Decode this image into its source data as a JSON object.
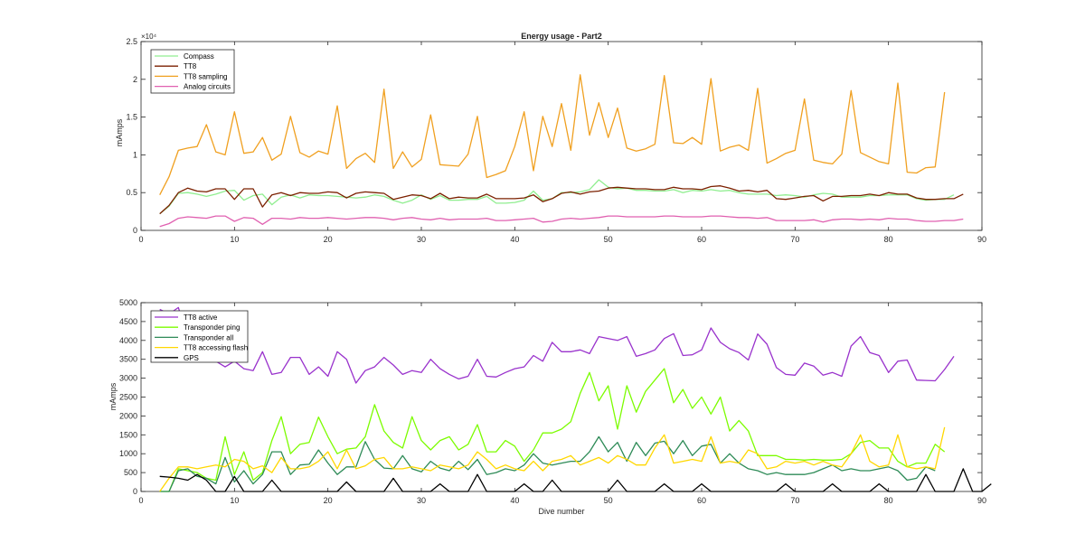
{
  "chart_data": [
    {
      "type": "line",
      "title": "Energy usage - Part2",
      "xlabel": "",
      "ylabel": "mAmps",
      "xlim": [
        0,
        90
      ],
      "ylim": [
        0,
        25000
      ],
      "x_ticks": [
        0,
        10,
        20,
        30,
        40,
        50,
        60,
        70,
        80,
        90
      ],
      "y_ticks": [
        0,
        5000,
        10000,
        15000,
        20000,
        25000
      ],
      "x_tick_labels": [
        "0",
        "10",
        "20",
        "30",
        "40",
        "50",
        "60",
        "70",
        "80",
        "90"
      ],
      "y_tick_labels": [
        "0",
        "0.5",
        "1",
        "1.5",
        "2",
        "2.5"
      ],
      "y_exponent_label": "×10⁴",
      "legend_position": "top-left",
      "grid": false,
      "x_start": 2,
      "series": [
        {
          "name": "Compass",
          "color": "#90ee90",
          "values": [
            2200,
            3200,
            4900,
            5000,
            4800,
            4500,
            4800,
            5200,
            5300,
            4000,
            4600,
            4800,
            3400,
            4400,
            4700,
            4300,
            4700,
            4600,
            4600,
            4500,
            4400,
            4300,
            4400,
            4700,
            4500,
            4000,
            3600,
            4000,
            4700,
            4100,
            4600,
            4000,
            4000,
            4100,
            4100,
            4500,
            3600,
            3600,
            3700,
            4000,
            5200,
            4000,
            4200,
            5000,
            5000,
            5100,
            5400,
            6700,
            5700,
            5500,
            5600,
            5300,
            5300,
            5200,
            5200,
            5400,
            5000,
            5300,
            5200,
            5400,
            5200,
            5300,
            5000,
            4800,
            4800,
            4800,
            4600,
            4700,
            4600,
            4400,
            4700,
            4900,
            4800,
            4400,
            4400,
            4400,
            4600,
            4600,
            4700,
            4700,
            4700,
            4200,
            4000,
            4100,
            4100,
            4700
          ]
        },
        {
          "name": "TT8",
          "color": "#7b2000",
          "values": [
            2200,
            3300,
            5000,
            5600,
            5200,
            5100,
            5500,
            5500,
            4100,
            5500,
            5500,
            3100,
            4700,
            5000,
            4600,
            5000,
            4900,
            4900,
            5100,
            5000,
            4300,
            4900,
            5100,
            5000,
            4900,
            4100,
            4400,
            4700,
            4600,
            4200,
            4900,
            4200,
            4400,
            4300,
            4300,
            4800,
            4200,
            4200,
            4200,
            4300,
            4700,
            3800,
            4200,
            4900,
            5100,
            4800,
            5100,
            5200,
            5600,
            5700,
            5600,
            5500,
            5500,
            5400,
            5400,
            5700,
            5500,
            5500,
            5400,
            5800,
            5900,
            5600,
            5200,
            5300,
            5100,
            5300,
            4200,
            4100,
            4300,
            4500,
            4600,
            3900,
            4500,
            4500,
            4600,
            4600,
            4800,
            4600,
            5000,
            4800,
            4800,
            4300,
            4100,
            4100,
            4200,
            4200,
            4800
          ]
        },
        {
          "name": "TT8 sampling",
          "color": "#f0a020",
          "values": [
            4700,
            7100,
            10600,
            10900,
            11100,
            14000,
            10400,
            10000,
            15700,
            10200,
            10400,
            12300,
            9300,
            10100,
            15100,
            10300,
            9700,
            10500,
            10100,
            16500,
            8200,
            9500,
            10200,
            9000,
            18700,
            8200,
            10400,
            8400,
            9400,
            15300,
            8700,
            8600,
            8500,
            10100,
            15100,
            7000,
            7400,
            7900,
            11100,
            15700,
            7900,
            15100,
            11100,
            16800,
            10600,
            20600,
            12600,
            16900,
            12300,
            16200,
            10900,
            10500,
            10800,
            11400,
            20500,
            11600,
            11500,
            12300,
            11400,
            20100,
            10500,
            11000,
            11300,
            10600,
            18800,
            8900,
            9500,
            10200,
            10600,
            17400,
            9300,
            9000,
            8800,
            10100,
            18500,
            10300,
            9700,
            9100,
            8800,
            19500,
            7700,
            7600,
            8300,
            8400,
            18300
          ]
        },
        {
          "name": "Analog circuits",
          "color": "#e060b0",
          "values": [
            500,
            900,
            1600,
            1800,
            1700,
            1600,
            1900,
            1900,
            1200,
            1700,
            1600,
            800,
            1600,
            1600,
            1500,
            1700,
            1600,
            1600,
            1700,
            1600,
            1500,
            1600,
            1700,
            1700,
            1600,
            1400,
            1600,
            1700,
            1500,
            1400,
            1600,
            1400,
            1500,
            1500,
            1500,
            1600,
            1300,
            1300,
            1400,
            1500,
            1600,
            1100,
            1200,
            1500,
            1600,
            1500,
            1600,
            1700,
            1900,
            1900,
            1800,
            1800,
            1800,
            1800,
            1900,
            1900,
            1800,
            1800,
            1800,
            1900,
            1900,
            1800,
            1700,
            1700,
            1600,
            1700,
            1300,
            1300,
            1300,
            1300,
            1400,
            1100,
            1400,
            1500,
            1500,
            1400,
            1500,
            1400,
            1600,
            1500,
            1500,
            1300,
            1200,
            1200,
            1300,
            1300,
            1500
          ]
        }
      ]
    },
    {
      "type": "line",
      "title": "",
      "xlabel": "Dive number",
      "ylabel": "mAmps",
      "xlim": [
        0,
        90
      ],
      "ylim": [
        0,
        5000
      ],
      "x_ticks": [
        0,
        10,
        20,
        30,
        40,
        50,
        60,
        70,
        80,
        90
      ],
      "y_ticks": [
        0,
        500,
        1000,
        1500,
        2000,
        2500,
        3000,
        3500,
        4000,
        4500,
        5000
      ],
      "x_tick_labels": [
        "0",
        "10",
        "20",
        "30",
        "40",
        "50",
        "60",
        "70",
        "80",
        "90"
      ],
      "y_tick_labels": [
        "0",
        "500",
        "1000",
        "1500",
        "2000",
        "2500",
        "3000",
        "3500",
        "4000",
        "4500",
        "5000"
      ],
      "legend_position": "top-left",
      "grid": false,
      "x_start": 2,
      "series": [
        {
          "name": "TT8 active",
          "color": "#9932cc",
          "values": [
            4820,
            4700,
            4870,
            4050,
            4100,
            3900,
            3450,
            3300,
            3450,
            3250,
            3200,
            3700,
            3100,
            3150,
            3550,
            3550,
            3100,
            3300,
            3050,
            3700,
            3500,
            2870,
            3200,
            3300,
            3550,
            3350,
            3100,
            3200,
            3150,
            3500,
            3250,
            3100,
            2980,
            3050,
            3500,
            3050,
            3030,
            3150,
            3250,
            3300,
            3600,
            3450,
            3950,
            3700,
            3700,
            3750,
            3650,
            4100,
            4050,
            4000,
            4100,
            3580,
            3650,
            3750,
            4050,
            4180,
            3600,
            3620,
            3750,
            4330,
            3950,
            3780,
            3680,
            3480,
            4170,
            3900,
            3280,
            3100,
            3080,
            3400,
            3320,
            3080,
            3150,
            3050,
            3850,
            4100,
            3680,
            3600,
            3150,
            3450,
            3480,
            2950,
            2940,
            2930,
            3230,
            3580
          ]
        },
        {
          "name": "Transponder ping",
          "color": "#7cfc00",
          "values": [
            0,
            0,
            600,
            550,
            500,
            350,
            300,
            1450,
            450,
            1050,
            300,
            500,
            1350,
            1980,
            1000,
            1250,
            1300,
            1970,
            1450,
            1000,
            1120,
            1150,
            1450,
            2300,
            1600,
            1300,
            1150,
            1980,
            1350,
            1100,
            1350,
            1450,
            1100,
            1250,
            1770,
            1050,
            1050,
            1350,
            1200,
            800,
            1100,
            1550,
            1550,
            1650,
            1850,
            2600,
            3150,
            2400,
            2800,
            1650,
            2800,
            2100,
            2650,
            2950,
            3250,
            2350,
            2700,
            2200,
            2500,
            2050,
            2500,
            1600,
            1880,
            1600,
            950,
            950,
            950,
            850,
            850,
            830,
            850,
            830,
            830,
            850,
            1000,
            1300,
            1350,
            1150,
            1150,
            800,
            650,
            750,
            750,
            1250,
            1050
          ]
        },
        {
          "name": "Transponder all",
          "color": "#2e8b57",
          "values": [
            0,
            0,
            550,
            600,
            400,
            350,
            200,
            900,
            250,
            550,
            200,
            450,
            1050,
            1050,
            450,
            700,
            720,
            1100,
            750,
            450,
            650,
            650,
            1320,
            850,
            620,
            600,
            950,
            600,
            520,
            800,
            620,
            550,
            800,
            580,
            850,
            450,
            500,
            600,
            550,
            700,
            1000,
            750,
            700,
            750,
            800,
            800,
            1050,
            1450,
            1050,
            1300,
            800,
            1300,
            950,
            1280,
            1330,
            1000,
            1350,
            950,
            1200,
            1250,
            750,
            1000,
            750,
            600,
            550,
            450,
            500,
            450,
            450,
            450,
            500,
            600,
            700,
            550,
            600,
            550,
            550,
            600,
            650,
            550,
            300,
            350,
            650,
            550
          ]
        },
        {
          "name": "TT8 accessing flash",
          "color": "#ffd700",
          "values": [
            0,
            350,
            650,
            650,
            600,
            650,
            700,
            650,
            850,
            800,
            600,
            680,
            500,
            900,
            600,
            600,
            650,
            800,
            1050,
            600,
            1100,
            600,
            680,
            850,
            900,
            600,
            600,
            650,
            600,
            550,
            700,
            650,
            600,
            700,
            1050,
            850,
            600,
            700,
            600,
            550,
            800,
            550,
            800,
            850,
            950,
            700,
            800,
            900,
            750,
            950,
            850,
            700,
            700,
            1150,
            1500,
            750,
            800,
            850,
            800,
            1450,
            750,
            800,
            750,
            1100,
            1000,
            600,
            650,
            800,
            750,
            800,
            700,
            800,
            700,
            650,
            1000,
            1500,
            800,
            650,
            700,
            1500,
            650,
            600,
            650,
            600,
            1700
          ]
        },
        {
          "name": "GPS",
          "color": "#000000",
          "values": [
            400,
            380,
            350,
            300,
            450,
            300,
            0,
            0,
            400,
            0,
            0,
            0,
            300,
            0,
            0,
            0,
            0,
            0,
            0,
            0,
            250,
            0,
            0,
            0,
            0,
            350,
            0,
            0,
            0,
            0,
            200,
            0,
            0,
            0,
            450,
            0,
            0,
            0,
            0,
            200,
            0,
            0,
            300,
            0,
            0,
            0,
            0,
            0,
            0,
            300,
            0,
            0,
            0,
            0,
            200,
            0,
            0,
            0,
            200,
            0,
            0,
            0,
            0,
            0,
            0,
            0,
            0,
            200,
            0,
            0,
            0,
            0,
            200,
            0,
            0,
            0,
            0,
            200,
            0,
            0,
            0,
            0,
            450,
            0,
            0,
            0,
            600,
            0,
            0,
            200
          ]
        }
      ]
    }
  ]
}
